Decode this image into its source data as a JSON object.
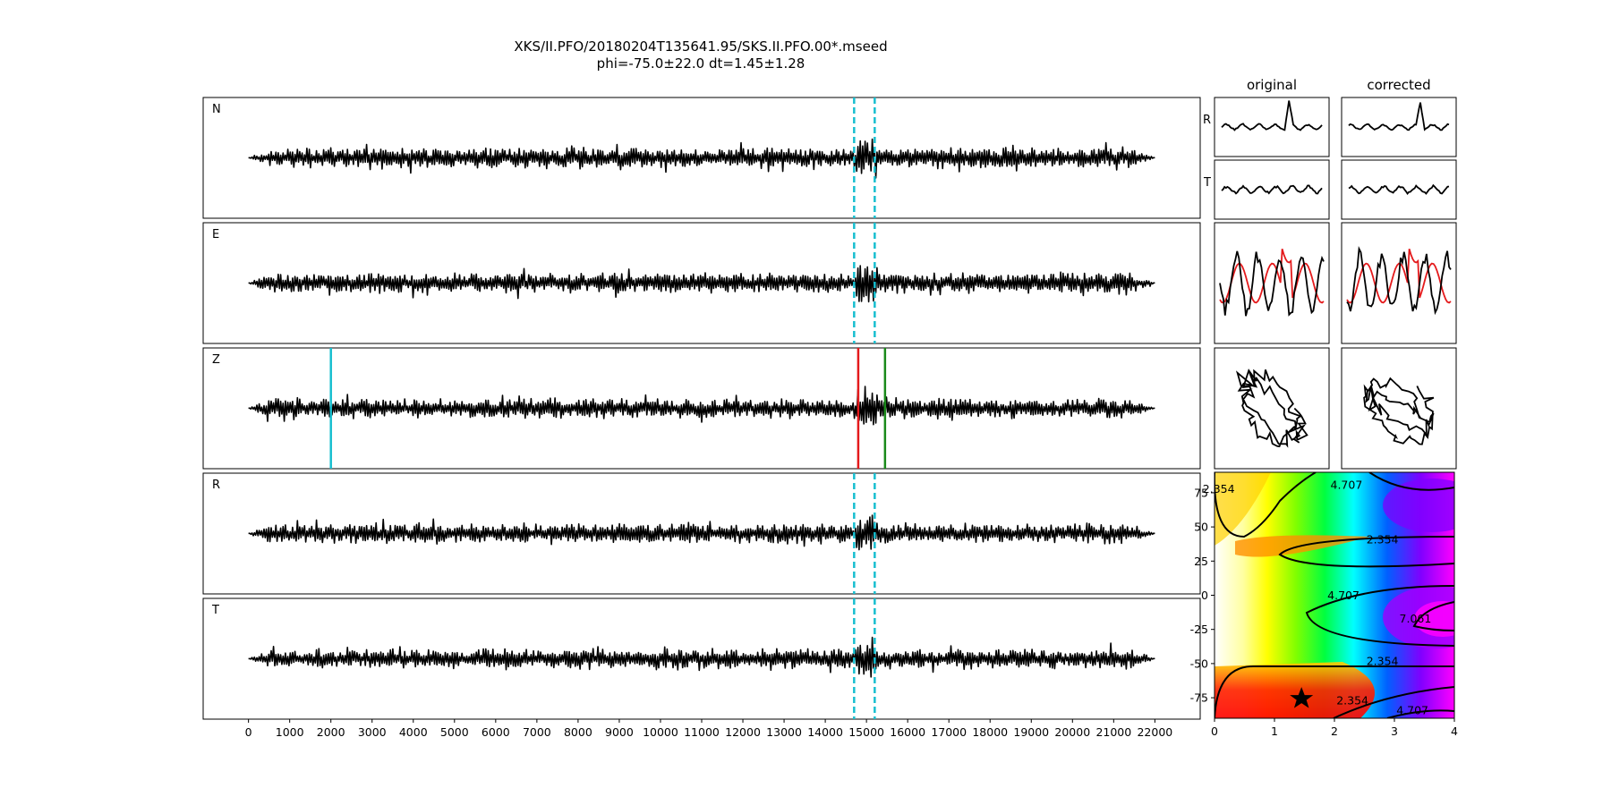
{
  "title": {
    "line1": "XKS/II.PFO/20180204T135641.95/SKS.II.PFO.00*.mseed",
    "line2": "phi=-75.0±22.0 dt=1.45±1.28"
  },
  "colors": {
    "trace": "#000000",
    "window_marker": "#17becf",
    "pick_cyan": "#17becf",
    "pick_red": "#e41a1c",
    "pick_green": "#1a8a1a",
    "particle_red": "#e41a1c"
  },
  "chart_data": [
    {
      "type": "line",
      "name": "waveform-panels",
      "panels": [
        {
          "label": "N",
          "window_markers": [
            14700,
            15200
          ]
        },
        {
          "label": "E",
          "window_markers": [
            14700,
            15200
          ]
        },
        {
          "label": "Z",
          "picks": [
            {
              "x": 2000,
              "color": "cyan"
            },
            {
              "x": 14800,
              "color": "red"
            },
            {
              "x": 15450,
              "color": "green"
            }
          ]
        },
        {
          "label": "R",
          "window_markers": [
            14700,
            15200
          ]
        },
        {
          "label": "T",
          "window_markers": [
            14700,
            15200
          ]
        }
      ],
      "xlim": [
        -1100,
        23100
      ],
      "signal_range": [
        0,
        22000
      ],
      "xticks": [
        0,
        1000,
        2000,
        3000,
        4000,
        5000,
        6000,
        7000,
        8000,
        9000,
        10000,
        11000,
        12000,
        13000,
        14000,
        15000,
        16000,
        17000,
        18000,
        19000,
        20000,
        21000,
        22000
      ],
      "xticklabels": [
        "0",
        "1000",
        "2000",
        "3000",
        "4000",
        "5000",
        "6000",
        "7000",
        "8000",
        "9000",
        "10000",
        "11000",
        "12000",
        "13000",
        "14000",
        "15000",
        "16000",
        "17000",
        "18000",
        "19000",
        "20000",
        "21000",
        "22000"
      ]
    },
    {
      "type": "line",
      "name": "window-comparison",
      "column_titles": [
        "original",
        "corrected"
      ],
      "row_labels": [
        "R",
        "T"
      ]
    },
    {
      "type": "heatmap",
      "name": "error-surface",
      "x_ticks": [
        "0",
        "1",
        "2",
        "3",
        "4"
      ],
      "y_ticks": [
        "75",
        "50",
        "25",
        "0",
        "-25",
        "-50",
        "-75"
      ],
      "xlim": [
        0,
        4
      ],
      "ylim": [
        -90,
        90
      ],
      "contour_labels": [
        "2.354",
        "4.707",
        "7.061"
      ],
      "contour_label_instances": [
        {
          "text": "2.354",
          "x": 0.07,
          "y": 75
        },
        {
          "text": "4.707",
          "x": 2.2,
          "y": 78
        },
        {
          "text": "2.354",
          "x": 2.8,
          "y": 38
        },
        {
          "text": "4.707",
          "x": 2.15,
          "y": -3
        },
        {
          "text": "7.061",
          "x": 3.35,
          "y": -20
        },
        {
          "text": "2.354",
          "x": 2.8,
          "y": -51
        },
        {
          "text": "2.354",
          "x": 2.3,
          "y": -80
        },
        {
          "text": "4.707",
          "x": 3.3,
          "y": -87
        }
      ],
      "best_fit": {
        "dt": 1.45,
        "phi": -75.0
      }
    }
  ]
}
